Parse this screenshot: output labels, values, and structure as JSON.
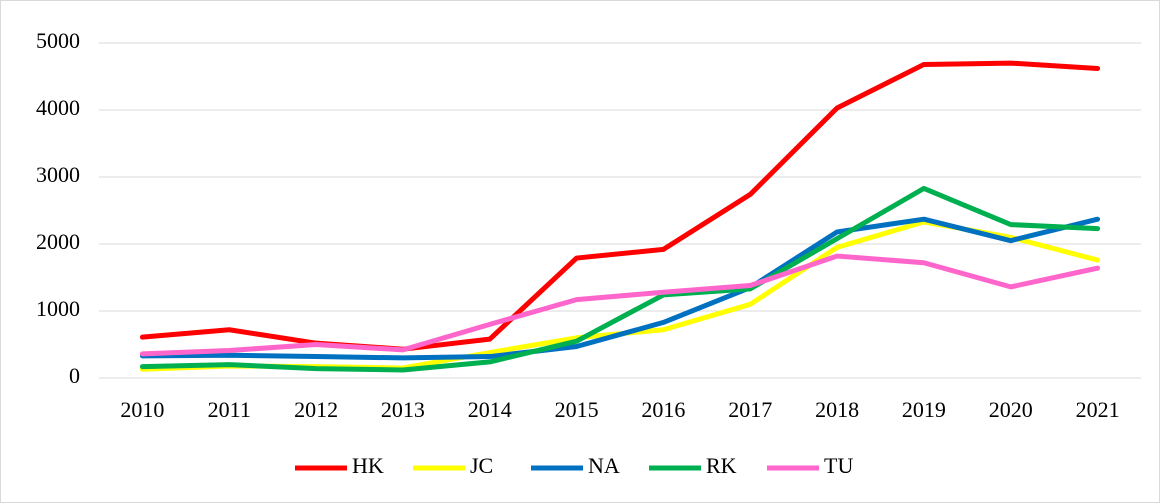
{
  "chart_data": {
    "type": "line",
    "categories": [
      "2010",
      "2011",
      "2012",
      "2013",
      "2014",
      "2015",
      "2016",
      "2017",
      "2018",
      "2019",
      "2020",
      "2021"
    ],
    "series": [
      {
        "name": "HK",
        "color": "#ff0000",
        "values": [
          610,
          720,
          520,
          430,
          580,
          1790,
          1920,
          2740,
          4030,
          4680,
          4700,
          4620
        ]
      },
      {
        "name": "JC",
        "color": "#ffff00",
        "values": [
          130,
          180,
          170,
          150,
          380,
          600,
          720,
          1100,
          1950,
          2330,
          2100,
          1760
        ]
      },
      {
        "name": "NA",
        "color": "#0070c0",
        "values": [
          330,
          340,
          320,
          300,
          320,
          470,
          830,
          1350,
          2180,
          2370,
          2050,
          2370
        ]
      },
      {
        "name": "RK",
        "color": "#00b050",
        "values": [
          170,
          200,
          140,
          120,
          240,
          550,
          1240,
          1330,
          2080,
          2830,
          2290,
          2230
        ]
      },
      {
        "name": "TU",
        "color": "#ff66cc",
        "values": [
          360,
          410,
          500,
          420,
          800,
          1170,
          1280,
          1380,
          1820,
          1720,
          1360,
          1640
        ]
      }
    ],
    "ylim": [
      0,
      5000
    ],
    "yticks": [
      0,
      1000,
      2000,
      3000,
      4000,
      5000
    ],
    "grid": true,
    "legend": "bottom"
  }
}
